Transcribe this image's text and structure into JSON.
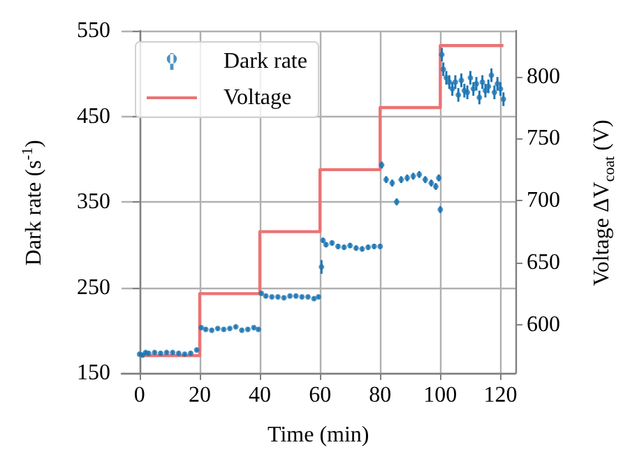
{
  "chart_data": {
    "type": "scatter",
    "xlabel": "Time (min)",
    "ylabel": "Dark rate (s$^{-1}$)",
    "y2label": "Voltage ΔV$_{coat}$ (V)",
    "xlim": [
      -6,
      125
    ],
    "xticks": [
      0,
      20,
      40,
      60,
      80,
      100,
      120
    ],
    "ylim": [
      150,
      550
    ],
    "yticks": [
      150,
      250,
      350,
      450,
      550
    ],
    "y2lim": [
      561,
      837
    ],
    "y2ticks": [
      600,
      650,
      700,
      750,
      800
    ],
    "grid": true,
    "legend": "top left",
    "series": [
      {
        "name": "Dark rate",
        "marker": "circle",
        "color": "#1f77b4",
        "x": [
          0,
          1,
          2,
          3,
          5,
          7,
          9,
          11,
          13,
          15,
          17,
          19,
          20.5,
          22,
          24,
          26,
          28,
          30,
          32,
          34,
          36,
          38,
          39.5,
          40.5,
          42,
          44,
          46,
          48,
          50,
          52,
          54,
          56,
          58,
          59.5,
          60.5,
          61,
          62,
          64,
          66,
          68,
          70,
          72,
          74,
          76,
          78,
          80,
          80.5,
          82,
          84,
          85.5,
          87,
          89,
          91,
          93,
          95,
          97,
          98.5,
          99.5,
          100,
          100.5,
          101,
          102,
          103,
          104,
          105,
          106,
          107,
          108,
          109,
          110,
          111,
          112,
          113,
          114,
          115,
          116,
          117,
          118,
          119,
          120,
          121
        ],
        "values": [
          172,
          171,
          174,
          173,
          174,
          173,
          174,
          174,
          173,
          172,
          173,
          177,
          203,
          201,
          200,
          202,
          201,
          202,
          204,
          200,
          201,
          203,
          201,
          243,
          240,
          239,
          239,
          238,
          240,
          240,
          239,
          239,
          237,
          239,
          274,
          305,
          300,
          302,
          298,
          297,
          299,
          296,
          295,
          297,
          298,
          298,
          393,
          376,
          372,
          350,
          376,
          378,
          380,
          382,
          376,
          372,
          368,
          378,
          341,
          522,
          505,
          495,
          490,
          482,
          490,
          475,
          492,
          480,
          478,
          495,
          482,
          488,
          472,
          490,
          480,
          485,
          498,
          478,
          488,
          482,
          470
        ],
        "errors": [
          2,
          2,
          2,
          2,
          2,
          2,
          2,
          2,
          2,
          2,
          2,
          2,
          2,
          2,
          2,
          2,
          2,
          2,
          2,
          2,
          2,
          2,
          2,
          2,
          2,
          2,
          2,
          2,
          2,
          2,
          2,
          2,
          2,
          2,
          8,
          3,
          3,
          3,
          3,
          3,
          3,
          3,
          3,
          3,
          3,
          3,
          4,
          4,
          4,
          4,
          4,
          4,
          4,
          4,
          4,
          4,
          4,
          4,
          4,
          8,
          8,
          8,
          8,
          8,
          8,
          8,
          8,
          8,
          8,
          8,
          8,
          8,
          8,
          8,
          8,
          8,
          8,
          8,
          8,
          8,
          8
        ]
      },
      {
        "name": "Voltage",
        "type": "step",
        "axis": "y2",
        "color": "#eb7374",
        "line_style": "solid",
        "x": [
          0,
          20,
          40,
          60,
          80,
          100,
          121
        ],
        "values": [
          575,
          625,
          675,
          725,
          775,
          825,
          825
        ]
      }
    ]
  }
}
